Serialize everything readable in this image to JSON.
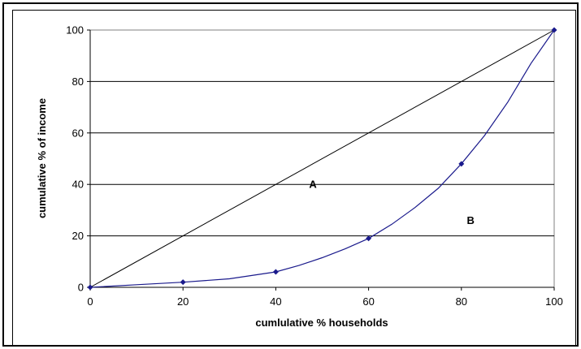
{
  "chart_data": {
    "type": "line",
    "title": "",
    "xlabel": "cumlulative % households",
    "ylabel": "cumulative % of income",
    "xlim": [
      0,
      100
    ],
    "ylim": [
      0,
      100
    ],
    "x_ticks": [
      "0",
      "20",
      "40",
      "60",
      "80",
      "100"
    ],
    "y_ticks": [
      "0",
      "20",
      "40",
      "60",
      "80",
      "100"
    ],
    "grid": "horizontal",
    "legend": "none",
    "series": [
      {
        "kind": "equality-line",
        "color": "#000000",
        "points": [
          [
            0,
            0
          ],
          [
            100,
            100
          ]
        ]
      },
      {
        "kind": "lorenz-curve",
        "color": "#1a1a8c",
        "markers": [
          [
            0,
            0
          ],
          [
            20,
            2
          ],
          [
            40,
            6
          ],
          [
            60,
            19
          ],
          [
            80,
            48
          ],
          [
            100,
            100
          ]
        ],
        "curve": [
          [
            0,
            0
          ],
          [
            10,
            1
          ],
          [
            20,
            2
          ],
          [
            30,
            3.3
          ],
          [
            40,
            6
          ],
          [
            45,
            8.5
          ],
          [
            50,
            11.5
          ],
          [
            55,
            15
          ],
          [
            60,
            19
          ],
          [
            65,
            24.5
          ],
          [
            70,
            31
          ],
          [
            75,
            38.5
          ],
          [
            80,
            48
          ],
          [
            85,
            59
          ],
          [
            90,
            72
          ],
          [
            95,
            87
          ],
          [
            100,
            100
          ]
        ]
      }
    ],
    "annotations": [
      {
        "text": "A",
        "x": 48,
        "y": 40
      },
      {
        "text": "B",
        "x": 82,
        "y": 26
      }
    ]
  }
}
